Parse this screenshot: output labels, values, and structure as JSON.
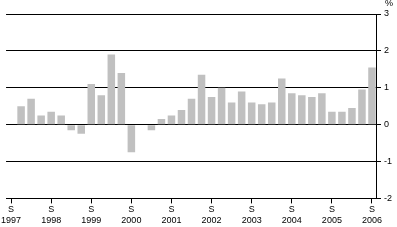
{
  "chart_data": {
    "type": "bar",
    "y_label": "%",
    "categories": [
      "S 1997",
      null,
      null,
      null,
      "S 1998",
      null,
      null,
      null,
      "S 1999",
      null,
      null,
      null,
      "S 2000",
      null,
      null,
      null,
      "S 2001",
      null,
      null,
      null,
      "S 2002",
      null,
      null,
      null,
      "S 2003",
      null,
      null,
      null,
      "S 2004",
      null,
      null,
      null,
      "S 2005",
      null,
      null,
      null,
      "S 2006"
    ],
    "values": [
      null,
      0.5,
      0.7,
      0.25,
      0.35,
      0.25,
      -0.15,
      -0.25,
      1.1,
      0.8,
      1.9,
      1.4,
      -0.75,
      0.0,
      -0.15,
      0.15,
      0.25,
      0.4,
      0.7,
      1.35,
      0.75,
      1.0,
      0.6,
      0.9,
      0.6,
      0.55,
      0.6,
      1.25,
      0.85,
      0.8,
      0.75,
      0.85,
      0.35,
      0.35,
      0.45,
      0.95,
      1.55
    ],
    "color": "#c0c0c0",
    "ylim": [
      -2,
      3
    ],
    "yticks": [
      -2,
      -1,
      0,
      1,
      2,
      3
    ],
    "grid": false
  }
}
